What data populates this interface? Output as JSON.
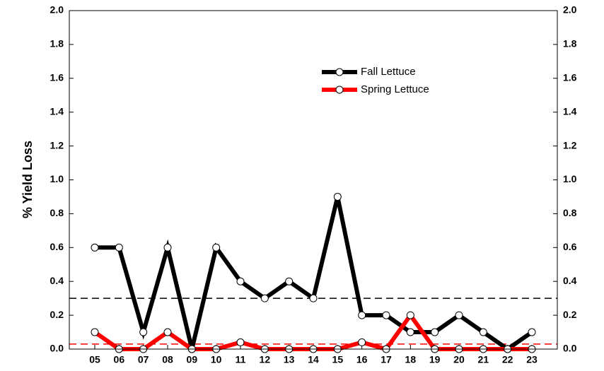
{
  "chart_data": {
    "type": "line",
    "ylabel": "% Yield Loss",
    "categories": [
      "05",
      "06",
      "07",
      "08",
      "09",
      "10",
      "11",
      "12",
      "13",
      "14",
      "15",
      "16",
      "17",
      "18",
      "19",
      "20",
      "21",
      "22",
      "23"
    ],
    "series": [
      {
        "name": "Fall Lettuce",
        "color": "#000000",
        "values": [
          0.6,
          0.6,
          0.1,
          0.6,
          0.0,
          0.6,
          0.4,
          0.3,
          0.4,
          0.3,
          0.9,
          0.2,
          0.2,
          0.1,
          0.1,
          0.2,
          0.1,
          0.0,
          0.1
        ]
      },
      {
        "name": "Spring Lettuce",
        "color": "#ff0000",
        "values": [
          0.1,
          0,
          0,
          0.1,
          0,
          0,
          0.04,
          0,
          0,
          0,
          0,
          0.04,
          0,
          0.2,
          0,
          0,
          0,
          0,
          0
        ]
      }
    ],
    "reference_lines": [
      {
        "value": 0.3,
        "color": "#000000"
      },
      {
        "value": 0.03,
        "color": "#ff0000"
      }
    ],
    "ylim": [
      0,
      2.0
    ],
    "yticks": [
      {
        "value": 0,
        "label": "0.0"
      },
      0.2,
      0.4,
      0.6,
      0.8,
      {
        "value": 1,
        "label": "1.0"
      },
      1.2,
      1.4,
      1.6,
      1.8,
      {
        "value": 2,
        "label": "2.0"
      }
    ],
    "right_axis": true,
    "legend": "top center"
  }
}
